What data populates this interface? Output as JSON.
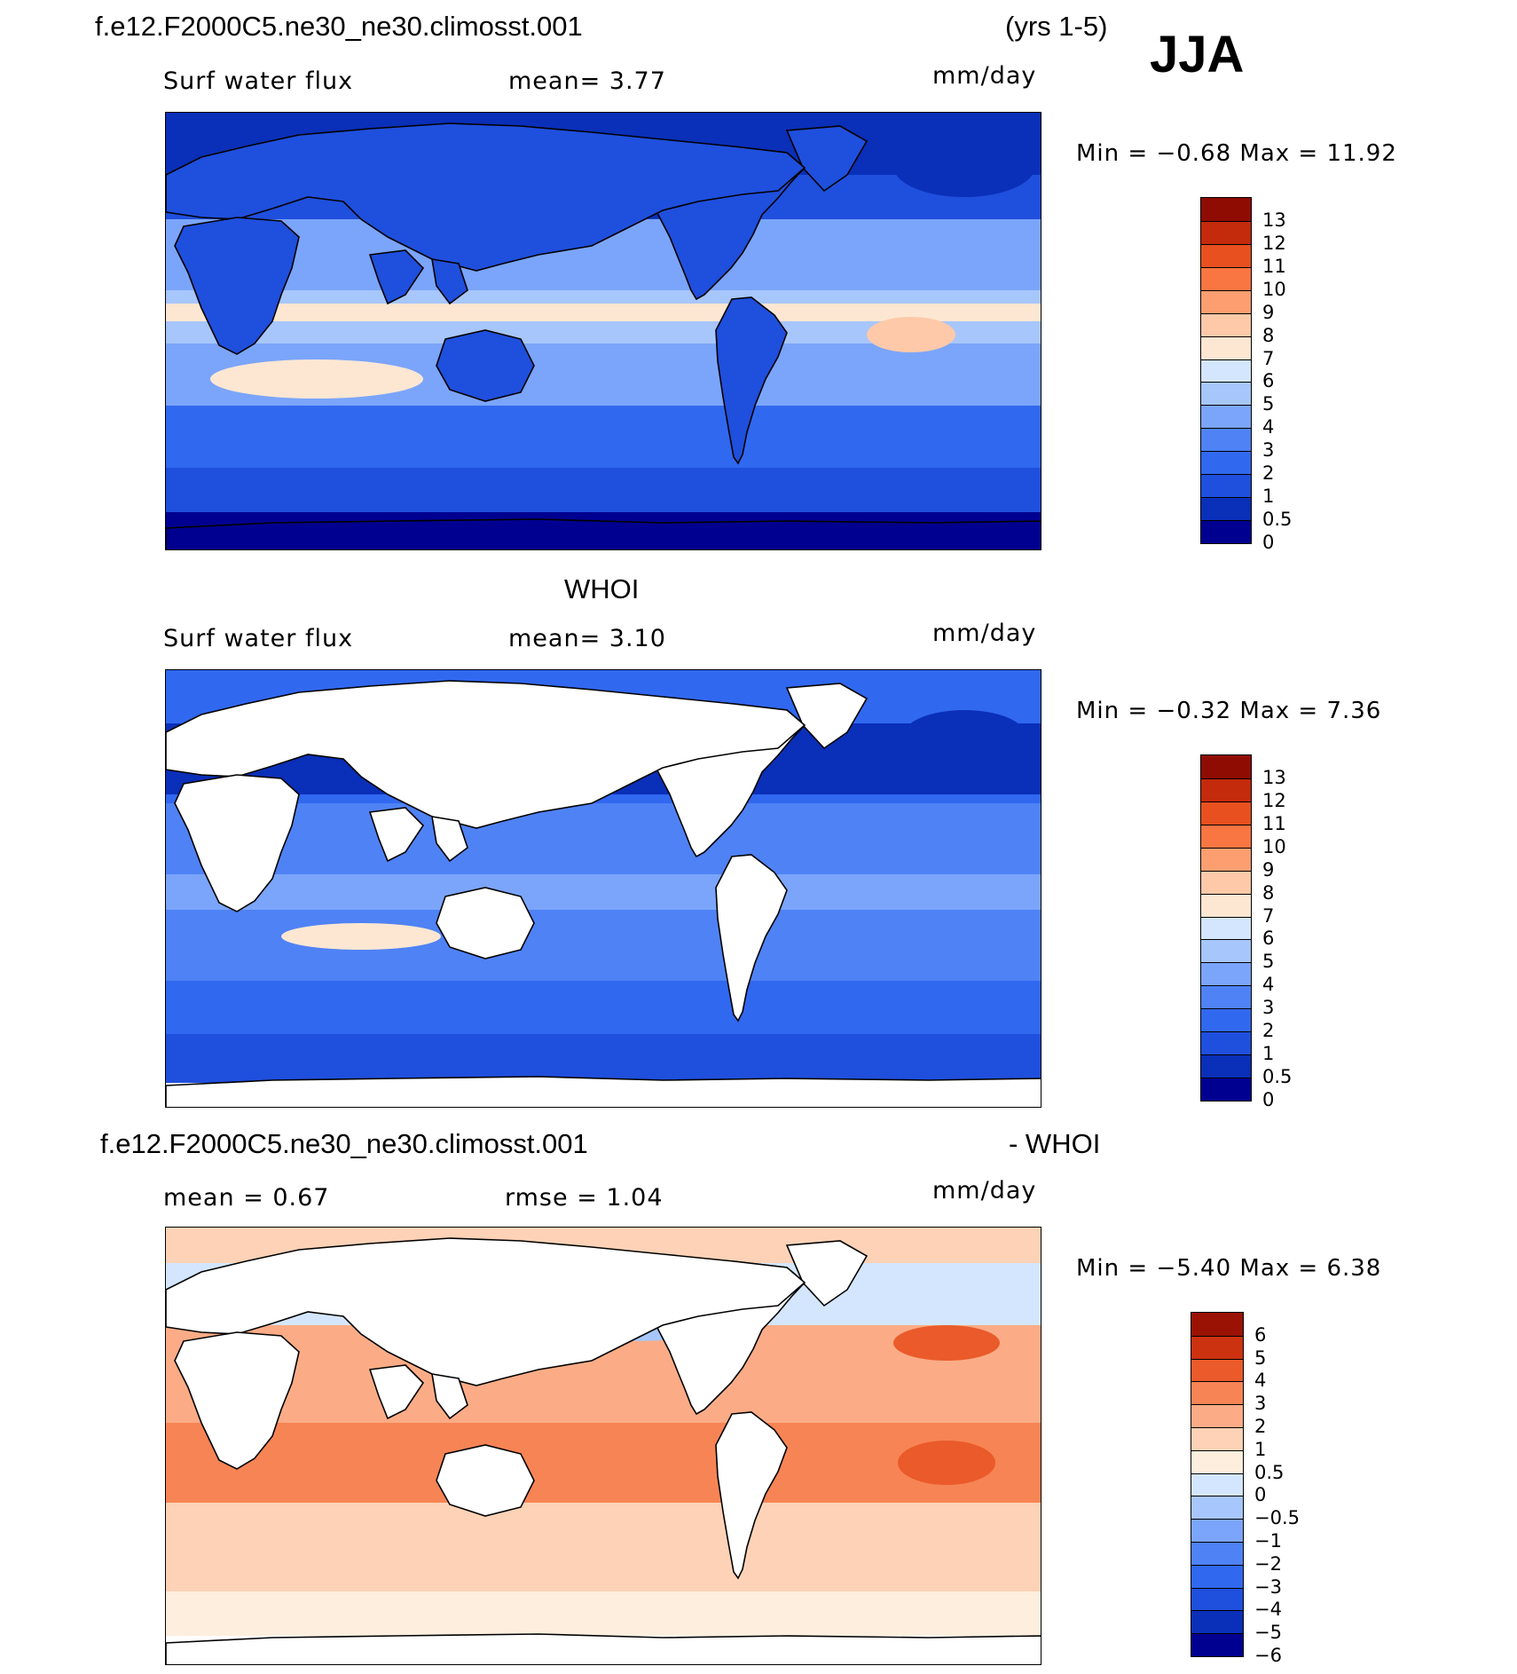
{
  "case_name": "f.e12.F2000C5.ne30_ne30.climosst.001",
  "years": "(yrs 1-5)",
  "season": "JJA",
  "colors": {
    "abs_scale": [
      "#000090",
      "#0a2fb8",
      "#1f4fdd",
      "#3168f0",
      "#4f82f5",
      "#7ba5fa",
      "#a7c6fb",
      "#d4e6fd",
      "#fde7d3",
      "#fdc9a9",
      "#fd9e71",
      "#f97541",
      "#e85020",
      "#c42a0c",
      "#8f0c02"
    ],
    "diff_scale": [
      "#000090",
      "#0a2fb8",
      "#1f4fdd",
      "#3168f0",
      "#4f82f5",
      "#7ba5fa",
      "#a7c6fb",
      "#d4e6fd",
      "#fdeede",
      "#fdd2b6",
      "#fbac86",
      "#f78455",
      "#ea5a2a",
      "#cc3210",
      "#9a1203"
    ],
    "land": "#ffffff"
  },
  "panels": [
    {
      "title_right": "",
      "subtitle_left": "Surf water flux",
      "subtitle_mid": "mean=    3.77",
      "units": "mm/day",
      "minmax": "Min  =   −0.68  Max  =    11.92",
      "colorbar_ticks": [
        "13",
        "12",
        "11",
        "10",
        "9",
        "8",
        "7",
        "6",
        "5",
        "4",
        "3",
        "2",
        "1",
        "0.5",
        "0"
      ],
      "field": "model"
    },
    {
      "title_center": "WHOI",
      "subtitle_left": "Surf water flux",
      "subtitle_mid": "mean=    3.10",
      "units": "mm/day",
      "minmax": "Min  =   −0.32  Max  =     7.36",
      "colorbar_ticks": [
        "13",
        "12",
        "11",
        "10",
        "9",
        "8",
        "7",
        "6",
        "5",
        "4",
        "3",
        "2",
        "1",
        "0.5",
        "0"
      ],
      "field": "obs"
    },
    {
      "title_left": "f.e12.F2000C5.ne30_ne30.climosst.001",
      "title_right": "- WHOI",
      "subtitle_left": "mean  =     0.67",
      "subtitle_mid": "rmse  =     1.04",
      "units": "mm/day",
      "minmax": "Min  =   −5.40  Max  =     6.38",
      "colorbar_ticks": [
        "6",
        "5",
        "4",
        "3",
        "2",
        "1",
        "0.5",
        "0",
        "−0.5",
        "−1",
        "−2",
        "−3",
        "−4",
        "−5",
        "−6"
      ],
      "field": "diff"
    }
  ]
}
